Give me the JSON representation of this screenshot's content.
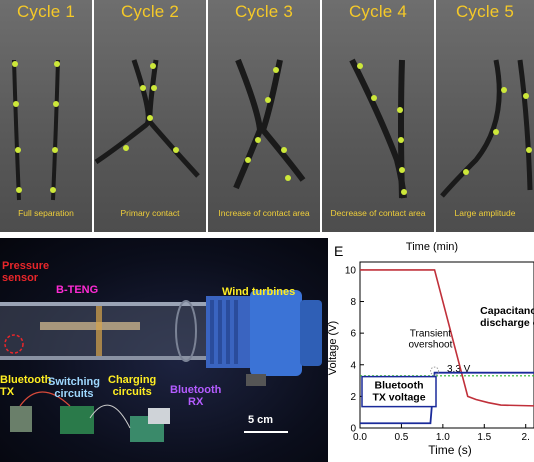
{
  "cycles": [
    {
      "title": "Cycle 1",
      "caption": "Full separation"
    },
    {
      "title": "Cycle 2",
      "caption": "Primary contact"
    },
    {
      "title": "Cycle 3",
      "caption": "Increase of contact area"
    },
    {
      "title": "Cycle 4",
      "caption": "Decrease of contact area"
    },
    {
      "title": "Cycle 5",
      "caption": "Large amplitude"
    }
  ],
  "photo": {
    "labels": {
      "pressure_sensor": "Pressure\nsensor",
      "b_teng": "B-TENG",
      "wind_turbines": "Wind turbines",
      "bluetooth_tx": "Bluetooth\nTX",
      "switching_circuits": "Switching\ncircuits",
      "charging_circuits": "Charging\ncircuits",
      "bluetooth_rx": "Bluetooth\nRX",
      "scale_bar": "5 cm"
    },
    "colors": {
      "pressure_sensor": "#e8262a",
      "b_teng": "#ff2bd4",
      "wind_turbines": "#ffee22",
      "bluetooth_tx": "#ffee22",
      "switching_circuits": "#9fd8ff",
      "charging_circuits": "#ffee22",
      "bluetooth_rx": "#b45cff",
      "scale_bar": "#ffffff"
    }
  },
  "chart_data": {
    "type": "line",
    "panel_letter": "E",
    "top_axis_label": "Time (min)",
    "xlabel": "Time (s)",
    "ylabel": "Voltage (V)",
    "xlim": [
      0,
      2.1
    ],
    "ylim": [
      0,
      10.5
    ],
    "xticks": [
      "0.0",
      "0.5",
      "1.0",
      "1.5",
      "2."
    ],
    "yticks": [
      "0",
      "2",
      "4",
      "6",
      "8",
      "10"
    ],
    "series": [
      {
        "name": "Capacitance\ndischarge cur",
        "color": "#c0303a",
        "x": [
          0.0,
          0.9,
          1.3,
          1.4,
          1.55,
          1.7,
          2.1
        ],
        "y": [
          10.0,
          10.0,
          2.0,
          1.8,
          1.6,
          1.45,
          1.4
        ]
      },
      {
        "name": "Bluetooth\nTX voltage",
        "color": "#1a2a9a",
        "x": [
          0.0,
          0.85,
          0.9,
          2.1
        ],
        "y": [
          0.3,
          0.3,
          3.5,
          3.5
        ]
      }
    ],
    "reference_line": {
      "label": "3.3 V",
      "y": 3.3,
      "color": "#2db82d"
    },
    "annotation": {
      "label": "Transient\novershoot",
      "x": 0.9,
      "y": 3.6,
      "color": "#9a9a9a"
    }
  }
}
